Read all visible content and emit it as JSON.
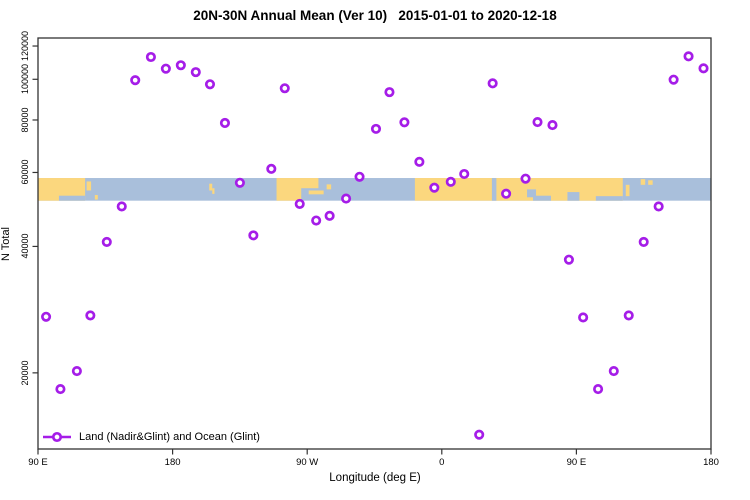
{
  "title": "20N-30N Annual Mean (Ver 10)   2015-01-01 to 2020-12-18",
  "legend": {
    "label": "Land (Nadir&Glint) and Ocean (Glint)",
    "marker": "open-circle-on-line"
  },
  "colors": {
    "point": "#A51DE8",
    "land": "#FBD77E",
    "ocean": "#A9BFDB",
    "axis": "#333333"
  },
  "chart_data": {
    "type": "scatter",
    "title": "20N-30N Annual Mean (Ver 10)   2015-01-01 to 2020-12-18",
    "xlabel": "Longitude (deg E)",
    "ylabel": "N Total",
    "x_axis_note": "axis spans 450 deg eastward: 90E -> 180 -> 90W -> 0 -> 90E -> 180 (90E-180E data plotted twice)",
    "x_range": [
      90,
      540
    ],
    "y_scale": "log",
    "y_range": [
      13175,
      125400
    ],
    "x_ticks": [
      {
        "pos": 90,
        "label": "90 E"
      },
      {
        "pos": 180,
        "label": "180"
      },
      {
        "pos": 270,
        "label": "90 W"
      },
      {
        "pos": 360,
        "label": "0"
      },
      {
        "pos": 450,
        "label": "90 E"
      },
      {
        "pos": 540,
        "label": "180"
      }
    ],
    "y_ticks": [
      {
        "value": 20000,
        "label": "20000"
      },
      {
        "value": 40000,
        "label": "40000"
      },
      {
        "value": 60000,
        "label": "60000"
      },
      {
        "value": 80000,
        "label": "80000"
      },
      {
        "value": 100000,
        "label": "100000"
      },
      {
        "value": 120000,
        "label": "120000"
      }
    ],
    "points_format": "[x_axis_longitude_coord, N_total]",
    "points": [
      [
        95.4,
        27200
      ],
      [
        105,
        18300
      ],
      [
        116,
        20200
      ],
      [
        125,
        27400
      ],
      [
        136,
        41000
      ],
      [
        146,
        49800
      ],
      [
        155,
        99500
      ],
      [
        165.5,
        113000
      ],
      [
        175.5,
        106000
      ],
      [
        185.5,
        108000
      ],
      [
        195.5,
        104000
      ],
      [
        205,
        97300
      ],
      [
        215,
        78700
      ],
      [
        225,
        56700
      ],
      [
        234,
        42500
      ],
      [
        246,
        61200
      ],
      [
        255,
        95200
      ],
      [
        265,
        50500
      ],
      [
        276,
        46100
      ],
      [
        285,
        47300
      ],
      [
        296,
        52000
      ],
      [
        305,
        58600
      ],
      [
        316,
        76200
      ],
      [
        325,
        93200
      ],
      [
        335,
        79000
      ],
      [
        345,
        63600
      ],
      [
        355,
        55200
      ],
      [
        366,
        57000
      ],
      [
        375,
        59500
      ],
      [
        385,
        14250
      ],
      [
        394,
        97800
      ],
      [
        403,
        53400
      ],
      [
        416,
        58000
      ],
      [
        424,
        79100
      ],
      [
        434,
        77800
      ],
      [
        445,
        37200
      ],
      [
        454.5,
        27100
      ],
      [
        464.5,
        18300
      ],
      [
        475,
        20200
      ],
      [
        485,
        27400
      ],
      [
        495,
        41000
      ],
      [
        505,
        49800
      ],
      [
        515,
        99800
      ],
      [
        525,
        113400
      ],
      [
        535,
        106200
      ]
    ],
    "map_band": {
      "description": "20N-30N world land/ocean strip drawn across plot",
      "value_top": 58200,
      "value_bottom": 51400,
      "land_segments": [
        [
          90,
          121.5,
          0,
          1
        ],
        [
          122.5,
          125.5,
          0.15,
          0.55
        ],
        [
          128,
          130,
          0.75,
          0.95
        ],
        [
          204.5,
          206.5,
          0.25,
          0.55
        ],
        [
          206.5,
          208,
          0.45,
          0.7
        ],
        [
          249.5,
          266,
          0,
          1
        ],
        [
          265,
          277.5,
          0,
          0.45
        ],
        [
          271,
          281,
          0.55,
          0.72
        ],
        [
          283,
          286,
          0.28,
          0.5
        ],
        [
          342,
          481,
          0,
          1
        ],
        [
          483,
          485.5,
          0.3,
          0.8
        ],
        [
          493,
          496,
          0.05,
          0.3
        ],
        [
          498,
          501,
          0.1,
          0.3
        ]
      ],
      "ocean_notches": [
        [
          104,
          121.5,
          0.78,
          1
        ],
        [
          393.5,
          396.5,
          0,
          1
        ],
        [
          417,
          423,
          0.5,
          0.85
        ],
        [
          421,
          433,
          0.78,
          1
        ],
        [
          444,
          452,
          0.62,
          1
        ],
        [
          463,
          481,
          0.8,
          1
        ]
      ]
    },
    "legend_entries": [
      "Land (Nadir&Glint) and Ocean (Glint)"
    ],
    "grid": false,
    "legend_position": "bottom-left inside plot"
  }
}
